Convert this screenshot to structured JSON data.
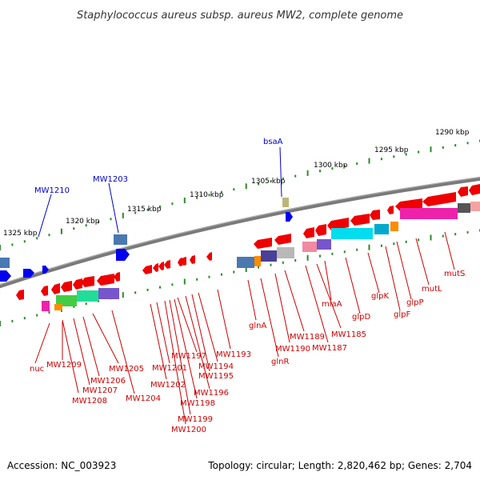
{
  "title": "Staphylococcus aureus subsp. aureus MW2, complete genome",
  "footer": {
    "accession": "Accession: NC_003923",
    "summary": "Topology: circular; Length: 2,820,462 bp; Genes: 2,704"
  },
  "colors": {
    "forward_label": "#0000cc",
    "reverse_label": "#cc0000",
    "backbone": "#808080",
    "tick": "#2a8a2a"
  },
  "kbp_labels": [
    "1290 kbp",
    "1295 kbp",
    "1300 kbp",
    "1305 kbp",
    "1310 kbp",
    "1315 kbp",
    "1320 kbp",
    "1325 kbp"
  ],
  "forward_genes": [
    "bsaA",
    "MW1203",
    "MW1210"
  ],
  "reverse_genes": [
    "mutS",
    "mutL",
    "glpP",
    "glpF",
    "glpK",
    "glpD",
    "miaA",
    "MW1185",
    "MW1187",
    "MW1189",
    "MW1190",
    "glnA",
    "glnR",
    "MW1193",
    "MW1194",
    "MW1195",
    "MW1196",
    "MW1197",
    "MW1198",
    "MW1199",
    "MW1200",
    "MW1201",
    "MW1202",
    "MW1204",
    "MW1205",
    "MW1206",
    "MW1207",
    "MW1208",
    "MW1209",
    "nuc"
  ]
}
